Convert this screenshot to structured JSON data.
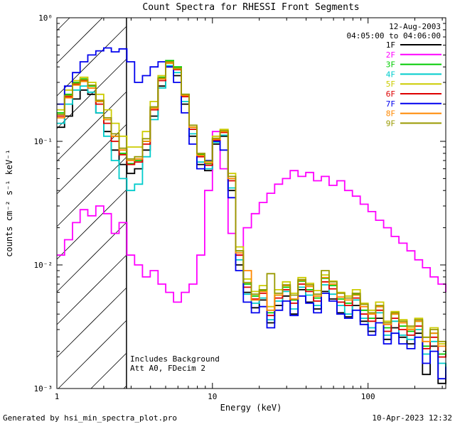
{
  "header": {
    "date": "12-Aug-2003",
    "time_range": "04:05:00 to 04:06:00"
  },
  "footer": {
    "left": "Generated by hsi_min_spectra_plot.pro",
    "right": "10-Apr-2023 12:32"
  },
  "chart_data": {
    "type": "line",
    "title": "Count Spectra for RHESSI Front Segments",
    "xlabel": "Energy (keV)",
    "ylabel": "counts cm⁻² s⁻¹ keV⁻¹",
    "x_scale": "log",
    "y_scale": "log",
    "xlim": [
      1,
      316
    ],
    "ylim": [
      0.001,
      1
    ],
    "grid": false,
    "step_mode": true,
    "legend_position": "top-right-inside",
    "annotations": [
      "Includes Background",
      "Att A0, FDecim 2"
    ],
    "hatched_region": {
      "x_start": 1,
      "x_end": 2.8
    },
    "xticks": [
      {
        "value": 1,
        "label": "1"
      },
      {
        "value": 10,
        "label": "10"
      },
      {
        "value": 100,
        "label": "100"
      }
    ],
    "yticks": [
      {
        "value": 0.001,
        "label": "10⁻³"
      },
      {
        "value": 0.01,
        "label": "10⁻²"
      },
      {
        "value": 0.1,
        "label": "10⁻¹"
      },
      {
        "value": 1,
        "label": "10⁰"
      }
    ],
    "energies_keV": [
      1,
      1.12,
      1.26,
      1.41,
      1.58,
      1.78,
      2,
      2.24,
      2.51,
      2.82,
      3.16,
      3.55,
      3.98,
      4.47,
      5.01,
      5.62,
      6.31,
      7.08,
      7.94,
      8.91,
      10,
      11.2,
      12.6,
      14.1,
      15.8,
      17.8,
      20,
      22.4,
      25.1,
      28.2,
      31.6,
      35.5,
      39.8,
      44.7,
      50.1,
      56.2,
      63.1,
      70.8,
      79.4,
      89.1,
      100,
      112,
      126,
      141,
      158,
      178,
      200,
      224,
      251,
      282,
      316
    ],
    "series": [
      {
        "name": "1F",
        "color": "#000000",
        "values": [
          0.13,
          0.16,
          0.22,
          0.26,
          0.24,
          0.17,
          0.12,
          0.085,
          0.065,
          0.055,
          0.06,
          0.085,
          0.16,
          0.28,
          0.4,
          0.34,
          0.2,
          0.11,
          0.065,
          0.058,
          0.095,
          0.11,
          0.04,
          0.01,
          0.006,
          0.0045,
          0.0052,
          0.0034,
          0.0047,
          0.0056,
          0.004,
          0.0063,
          0.005,
          0.0044,
          0.0061,
          0.0053,
          0.0041,
          0.0038,
          0.0047,
          0.0035,
          0.0029,
          0.0037,
          0.0025,
          0.0031,
          0.0026,
          0.0023,
          0.0028,
          0.0013,
          0.0022,
          0.0011,
          0.0016
        ]
      },
      {
        "name": "2F",
        "color": "#ff00ff",
        "values": [
          0.012,
          0.016,
          0.022,
          0.028,
          0.025,
          0.03,
          0.026,
          0.018,
          0.022,
          0.012,
          0.01,
          0.008,
          0.009,
          0.007,
          0.006,
          0.005,
          0.006,
          0.007,
          0.012,
          0.04,
          0.12,
          0.06,
          0.018,
          0.012,
          0.02,
          0.026,
          0.032,
          0.038,
          0.045,
          0.05,
          0.058,
          0.052,
          0.056,
          0.048,
          0.052,
          0.044,
          0.048,
          0.04,
          0.036,
          0.031,
          0.027,
          0.023,
          0.02,
          0.017,
          0.015,
          0.013,
          0.011,
          0.0095,
          0.008,
          0.007,
          0.006
        ]
      },
      {
        "name": "3F",
        "color": "#00cc00",
        "values": [
          0.17,
          0.24,
          0.3,
          0.32,
          0.28,
          0.21,
          0.15,
          0.11,
          0.08,
          0.066,
          0.07,
          0.1,
          0.19,
          0.33,
          0.45,
          0.4,
          0.24,
          0.13,
          0.078,
          0.066,
          0.105,
          0.12,
          0.05,
          0.013,
          0.007,
          0.0056,
          0.0062,
          0.0041,
          0.0057,
          0.0066,
          0.0052,
          0.0074,
          0.0063,
          0.0054,
          0.0078,
          0.0068,
          0.0053,
          0.0049,
          0.0058,
          0.0043,
          0.0037,
          0.0046,
          0.0031,
          0.004,
          0.0032,
          0.0029,
          0.0035,
          0.0022,
          0.0028,
          0.0019,
          0.0021
        ]
      },
      {
        "name": "4F",
        "color": "#00cccc",
        "values": [
          0.14,
          0.2,
          0.26,
          0.28,
          0.25,
          0.17,
          0.11,
          0.07,
          0.05,
          0.04,
          0.045,
          0.075,
          0.15,
          0.27,
          0.41,
          0.36,
          0.21,
          0.115,
          0.068,
          0.06,
          0.098,
          0.112,
          0.042,
          0.011,
          0.0058,
          0.0049,
          0.0054,
          0.0036,
          0.0051,
          0.0061,
          0.0044,
          0.0066,
          0.0057,
          0.0047,
          0.0069,
          0.0058,
          0.0047,
          0.004,
          0.0052,
          0.0037,
          0.0031,
          0.0041,
          0.0027,
          0.0035,
          0.0027,
          0.0025,
          0.003,
          0.0019,
          0.0024,
          0.0016,
          0.0013
        ]
      },
      {
        "name": "5F",
        "color": "#cccc00",
        "values": [
          0.18,
          0.26,
          0.31,
          0.33,
          0.3,
          0.24,
          0.18,
          0.14,
          0.11,
          0.09,
          0.09,
          0.12,
          0.21,
          0.34,
          0.44,
          0.39,
          0.23,
          0.13,
          0.08,
          0.07,
          0.11,
          0.125,
          0.055,
          0.014,
          0.0077,
          0.0061,
          0.0068,
          0.0046,
          0.0063,
          0.0073,
          0.0059,
          0.0079,
          0.0071,
          0.0062,
          0.0083,
          0.0074,
          0.006,
          0.0056,
          0.0063,
          0.0049,
          0.0043,
          0.005,
          0.0035,
          0.0042,
          0.0036,
          0.0031,
          0.0037,
          0.0026,
          0.0031,
          0.0023,
          0.0024
        ]
      },
      {
        "name": "6F",
        "color": "#dd0000",
        "values": [
          0.16,
          0.23,
          0.29,
          0.31,
          0.27,
          0.2,
          0.14,
          0.1,
          0.078,
          0.065,
          0.068,
          0.095,
          0.18,
          0.31,
          0.43,
          0.38,
          0.23,
          0.125,
          0.075,
          0.064,
          0.102,
          0.118,
          0.048,
          0.012,
          0.0066,
          0.0053,
          0.0059,
          0.0039,
          0.0054,
          0.0063,
          0.0049,
          0.007,
          0.0061,
          0.0051,
          0.0073,
          0.0064,
          0.005,
          0.0047,
          0.0054,
          0.004,
          0.0035,
          0.0043,
          0.0029,
          0.0037,
          0.003,
          0.0027,
          0.0032,
          0.0021,
          0.0026,
          0.0018,
          0.0019
        ]
      },
      {
        "name": "7F",
        "color": "#0000ee",
        "values": [
          0.2,
          0.28,
          0.36,
          0.44,
          0.5,
          0.54,
          0.57,
          0.53,
          0.56,
          0.44,
          0.3,
          0.34,
          0.4,
          0.44,
          0.4,
          0.3,
          0.17,
          0.095,
          0.06,
          0.07,
          0.1,
          0.085,
          0.035,
          0.009,
          0.005,
          0.0041,
          0.0046,
          0.0031,
          0.0043,
          0.0051,
          0.0039,
          0.0056,
          0.0049,
          0.0041,
          0.0059,
          0.0051,
          0.004,
          0.0037,
          0.0043,
          0.0033,
          0.0027,
          0.0034,
          0.0023,
          0.0028,
          0.0023,
          0.0021,
          0.0026,
          0.0016,
          0.002,
          0.0012,
          0.0015
        ]
      },
      {
        "name": "8F",
        "color": "#ff8800",
        "values": [
          0.155,
          0.225,
          0.285,
          0.305,
          0.27,
          0.21,
          0.15,
          0.11,
          0.085,
          0.07,
          0.072,
          0.1,
          0.185,
          0.32,
          0.43,
          0.385,
          0.235,
          0.13,
          0.077,
          0.067,
          0.104,
          0.12,
          0.05,
          0.0125,
          0.009,
          0.0052,
          0.0061,
          0.0043,
          0.0057,
          0.0068,
          0.0053,
          0.0075,
          0.0067,
          0.0056,
          0.0079,
          0.007,
          0.0055,
          0.0052,
          0.0057,
          0.0046,
          0.004,
          0.0046,
          0.0033,
          0.004,
          0.0034,
          0.003,
          0.0035,
          0.0024,
          0.0028,
          0.0022,
          0.002
        ]
      },
      {
        "name": "9F",
        "color": "#999900",
        "values": [
          0.165,
          0.235,
          0.295,
          0.315,
          0.285,
          0.215,
          0.155,
          0.115,
          0.088,
          0.072,
          0.075,
          0.105,
          0.19,
          0.325,
          0.44,
          0.39,
          0.24,
          0.135,
          0.08,
          0.069,
          0.106,
          0.122,
          0.052,
          0.013,
          0.0072,
          0.0058,
          0.0063,
          0.0085,
          0.0059,
          0.0069,
          0.0057,
          0.0076,
          0.0069,
          0.0058,
          0.009,
          0.0073,
          0.0059,
          0.0054,
          0.0059,
          0.0048,
          0.0041,
          0.0047,
          0.0034,
          0.0041,
          0.0035,
          0.0032,
          0.0036,
          0.0026,
          0.003,
          0.0024,
          0.0022
        ]
      }
    ]
  }
}
